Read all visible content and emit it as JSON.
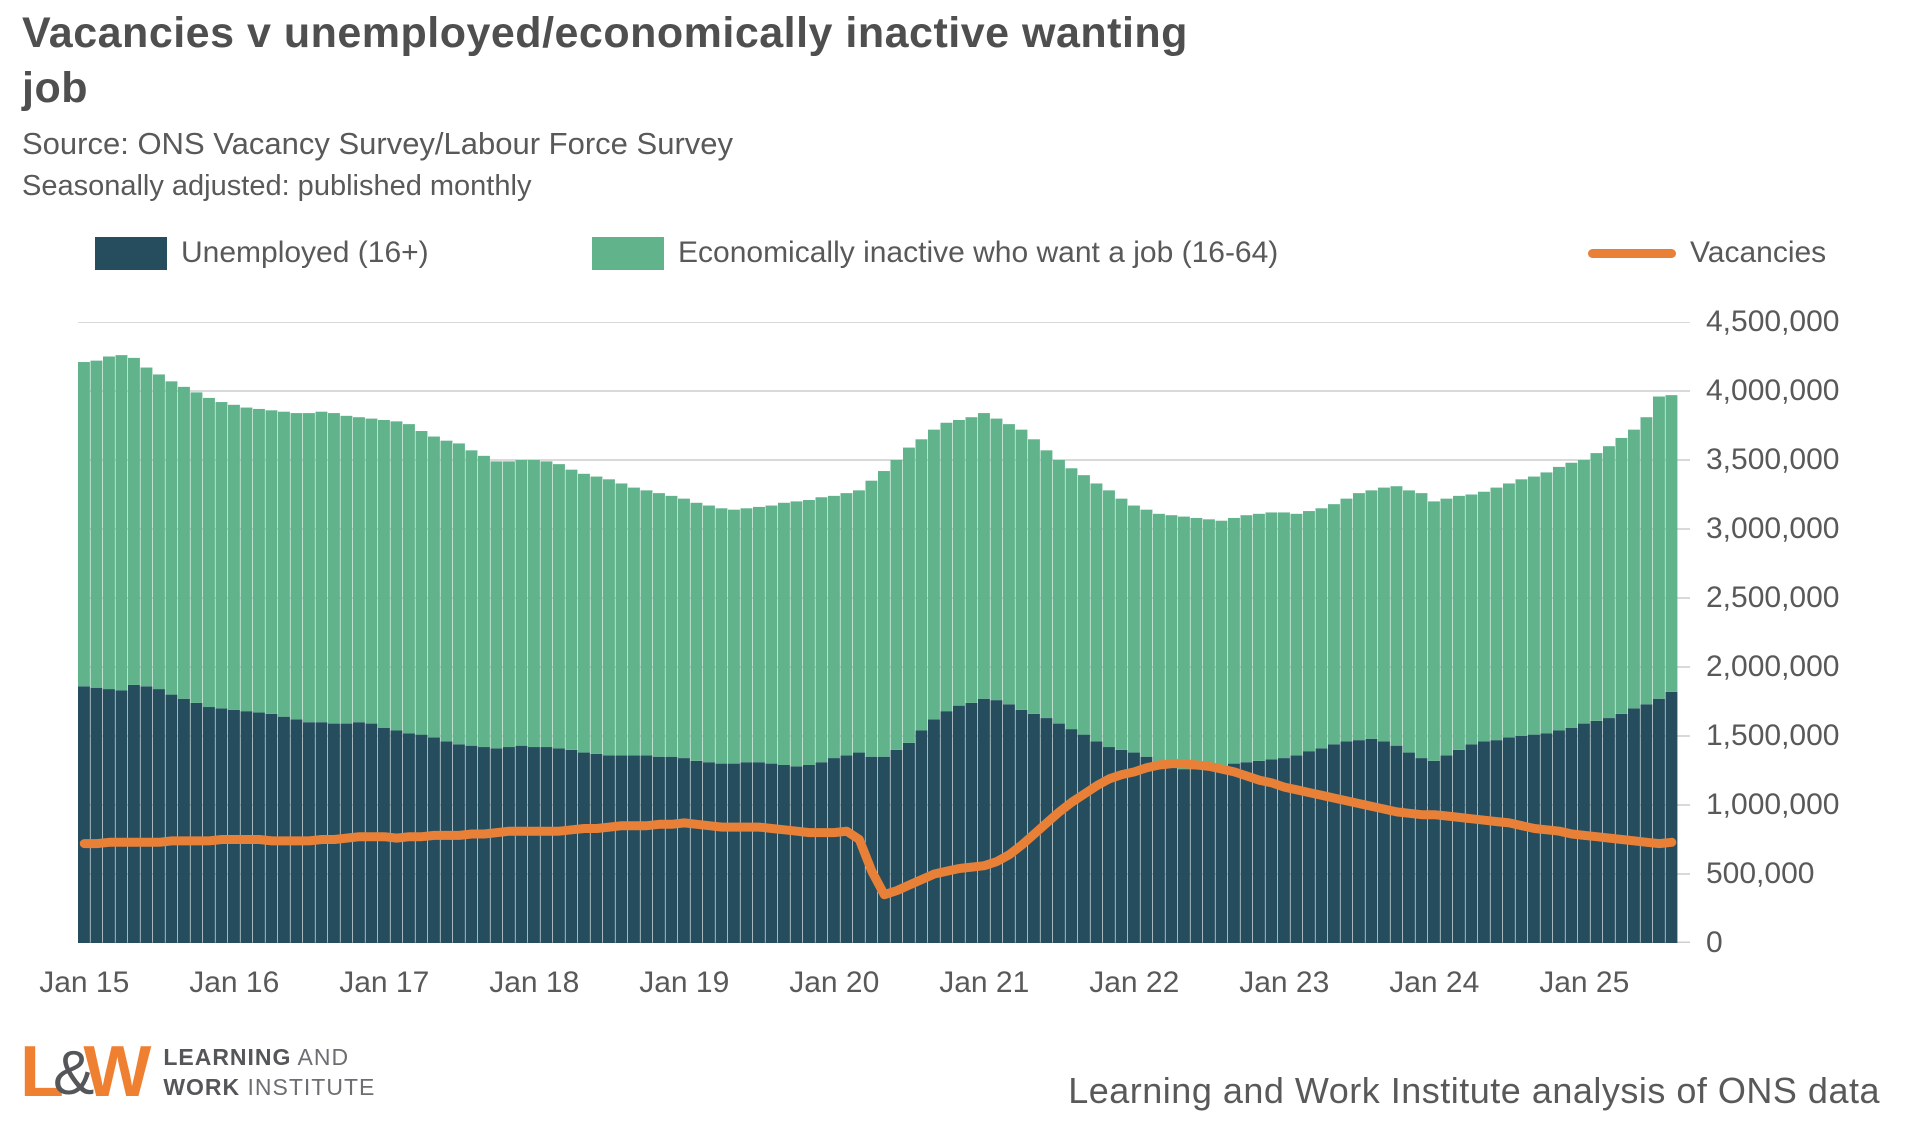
{
  "header": {
    "title_line1": "Vacancies v unemployed/economically inactive wanting",
    "title_line2": "job",
    "source": "Source: ONS Vacancy Survey/Labour Force Survey",
    "note": "Seasonally adjusted: published monthly"
  },
  "footer": {
    "credit": "Learning and Work Institute analysis of ONS data",
    "logo": {
      "letter_l": "L",
      "ampersand": "&",
      "letter_w": "W",
      "line1_bold": "LEARNING",
      "line1_rest": " AND",
      "line2_bold": "WORK",
      "line2_rest": " INSTITUTE"
    }
  },
  "colors": {
    "unemployed_bar": "#254d5e",
    "inactive_bar": "#61b38c",
    "vacancies_line": "#e98038",
    "gridline": "#d9d9d9",
    "axis_line": "#cfcfcf",
    "text": "#595959",
    "title": "#4f4f4f",
    "logo_orange": "#f08031",
    "logo_gray": "#54565a"
  },
  "chart_data": {
    "type": "stacked-bar+line",
    "title": "Vacancies v unemployed/economically inactive wanting job",
    "x_start": "Jan 2015",
    "x_frequency": "monthly",
    "x_tick_labels": [
      "Jan 15",
      "Jan 16",
      "Jan 17",
      "Jan 18",
      "Jan 19",
      "Jan 20",
      "Jan 21",
      "Jan 22",
      "Jan 23",
      "Jan 24",
      "Jan 25"
    ],
    "x_tick_month_indices": [
      0,
      12,
      24,
      36,
      48,
      60,
      72,
      84,
      96,
      108,
      120
    ],
    "y_axis": {
      "min": 0,
      "max": 4500000,
      "step": 500000,
      "tick_labels": [
        "4,500,000",
        "4,000,000",
        "3,500,000",
        "3,000,000",
        "2,500,000",
        "2,000,000",
        "1,500,000",
        "1,000,000",
        "500,000",
        "0"
      ]
    },
    "legend_position": "top",
    "grid": "horizontal",
    "series": [
      {
        "name": "Unemployed (16+)",
        "type": "bar",
        "stack": "people",
        "color_key": "unemployed_bar",
        "values_thousands": [
          1860,
          1850,
          1840,
          1830,
          1870,
          1860,
          1840,
          1800,
          1770,
          1740,
          1710,
          1700,
          1690,
          1680,
          1670,
          1660,
          1640,
          1620,
          1600,
          1600,
          1590,
          1590,
          1600,
          1590,
          1560,
          1540,
          1520,
          1510,
          1490,
          1460,
          1440,
          1430,
          1420,
          1410,
          1420,
          1430,
          1420,
          1420,
          1410,
          1400,
          1380,
          1370,
          1360,
          1360,
          1360,
          1360,
          1350,
          1350,
          1340,
          1320,
          1310,
          1300,
          1300,
          1310,
          1310,
          1300,
          1290,
          1280,
          1290,
          1310,
          1340,
          1360,
          1380,
          1350,
          1350,
          1400,
          1450,
          1540,
          1620,
          1680,
          1720,
          1740,
          1770,
          1760,
          1730,
          1690,
          1660,
          1630,
          1590,
          1550,
          1510,
          1460,
          1420,
          1400,
          1380,
          1350,
          1310,
          1280,
          1260,
          1260,
          1270,
          1280,
          1300,
          1310,
          1320,
          1330,
          1340,
          1360,
          1390,
          1410,
          1440,
          1460,
          1470,
          1480,
          1460,
          1430,
          1380,
          1340,
          1320,
          1360,
          1400,
          1440,
          1460,
          1470,
          1490,
          1500,
          1510,
          1520,
          1540,
          1560,
          1590,
          1610,
          1630,
          1660,
          1700,
          1730,
          1770,
          1820
        ]
      },
      {
        "name": "Economically inactive who want a job (16-64)",
        "type": "bar",
        "stack": "people",
        "color_key": "inactive_bar",
        "values_thousands": [
          2350,
          2370,
          2410,
          2430,
          2370,
          2310,
          2280,
          2270,
          2260,
          2250,
          2240,
          2220,
          2210,
          2200,
          2200,
          2200,
          2210,
          2220,
          2240,
          2250,
          2250,
          2230,
          2210,
          2210,
          2230,
          2240,
          2240,
          2200,
          2180,
          2180,
          2180,
          2140,
          2110,
          2080,
          2070,
          2070,
          2080,
          2070,
          2060,
          2030,
          2020,
          2010,
          2000,
          1970,
          1940,
          1920,
          1910,
          1890,
          1880,
          1870,
          1860,
          1850,
          1840,
          1840,
          1850,
          1870,
          1900,
          1920,
          1920,
          1920,
          1900,
          1900,
          1900,
          2000,
          2070,
          2100,
          2140,
          2110,
          2100,
          2090,
          2070,
          2070,
          2070,
          2040,
          2030,
          2030,
          1990,
          1940,
          1910,
          1890,
          1880,
          1870,
          1860,
          1820,
          1790,
          1790,
          1800,
          1820,
          1830,
          1820,
          1800,
          1780,
          1780,
          1790,
          1790,
          1790,
          1780,
          1750,
          1740,
          1740,
          1740,
          1760,
          1790,
          1800,
          1840,
          1880,
          1900,
          1920,
          1880,
          1860,
          1840,
          1810,
          1810,
          1830,
          1840,
          1860,
          1870,
          1890,
          1910,
          1920,
          1910,
          1940,
          1970,
          2000,
          2020,
          2080,
          2190,
          2150
        ]
      },
      {
        "name": "Vacancies",
        "type": "line",
        "color_key": "vacancies_line",
        "values_thousands": [
          720,
          720,
          730,
          730,
          730,
          730,
          730,
          740,
          740,
          740,
          740,
          750,
          750,
          750,
          750,
          740,
          740,
          740,
          740,
          750,
          750,
          760,
          770,
          770,
          770,
          760,
          770,
          770,
          780,
          780,
          780,
          790,
          790,
          800,
          810,
          810,
          810,
          810,
          810,
          820,
          830,
          830,
          840,
          850,
          850,
          850,
          860,
          860,
          870,
          860,
          850,
          840,
          840,
          840,
          840,
          830,
          820,
          810,
          800,
          800,
          800,
          810,
          750,
          520,
          350,
          380,
          420,
          460,
          500,
          520,
          540,
          550,
          560,
          590,
          640,
          710,
          790,
          870,
          950,
          1020,
          1080,
          1140,
          1190,
          1220,
          1240,
          1270,
          1290,
          1300,
          1300,
          1290,
          1280,
          1260,
          1240,
          1210,
          1180,
          1160,
          1130,
          1110,
          1090,
          1070,
          1050,
          1030,
          1010,
          990,
          970,
          950,
          940,
          930,
          930,
          920,
          910,
          900,
          890,
          880,
          870,
          850,
          830,
          820,
          810,
          790,
          780,
          770,
          760,
          750,
          740,
          730,
          720,
          730
        ]
      }
    ]
  }
}
